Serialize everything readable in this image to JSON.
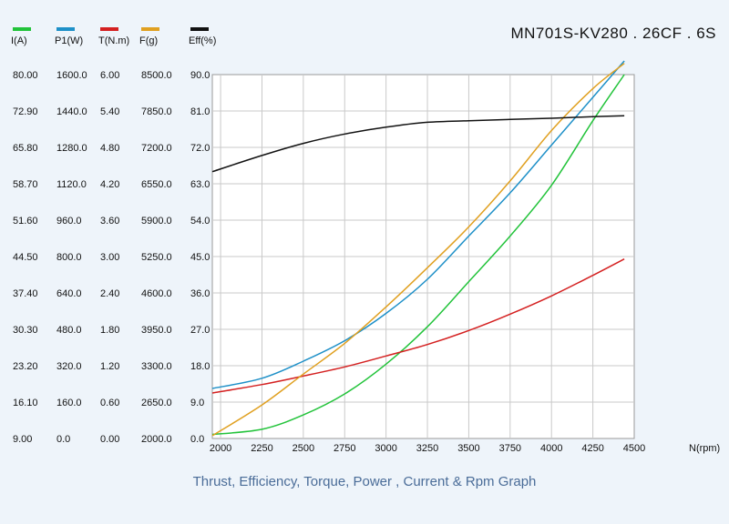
{
  "model_title": "MN701S-KV280 . 26CF . 6S",
  "caption": "Thrust, Efficiency, Torque, Power , Current & Rpm Graph",
  "chart_data": {
    "type": "line",
    "title": "MN701S-KV280 . 26CF . 6S",
    "xlabel": "N(rpm)",
    "xlim": [
      1950,
      4500
    ],
    "x_ticks": [
      "2000",
      "2250",
      "2500",
      "2750",
      "3000",
      "3250",
      "3500",
      "3750",
      "4000",
      "4250",
      "4500"
    ],
    "x_tick_values": [
      2000,
      2250,
      2500,
      2750,
      3000,
      3250,
      3500,
      3750,
      4000,
      4250,
      4500
    ],
    "grid": true,
    "legend_position": "top-left",
    "axes": [
      {
        "name": "I(A)",
        "color": "#22c33a",
        "ylim": [
          9,
          80
        ],
        "ticks": [
          "9.00",
          "16.10",
          "23.20",
          "30.30",
          "37.40",
          "44.50",
          "51.60",
          "58.70",
          "65.80",
          "72.90",
          "80.00"
        ]
      },
      {
        "name": "P1(W)",
        "color": "#1e90c8",
        "ylim": [
          0,
          1600
        ],
        "ticks": [
          "0.0",
          "160.0",
          "320.0",
          "480.0",
          "640.0",
          "800.0",
          "960.0",
          "1120.0",
          "1280.0",
          "1440.0",
          "1600.0"
        ]
      },
      {
        "name": "T(N.m)",
        "color": "#d42020",
        "ylim": [
          0,
          6
        ],
        "ticks": [
          "0.00",
          "0.60",
          "1.20",
          "1.80",
          "2.40",
          "3.00",
          "3.60",
          "4.20",
          "4.80",
          "5.40",
          "6.00"
        ]
      },
      {
        "name": "F(g)",
        "color": "#e0a020",
        "ylim": [
          2000,
          8500
        ],
        "ticks": [
          "2000.0",
          "2650.0",
          "3300.0",
          "3950.0",
          "4600.0",
          "5250.0",
          "5900.0",
          "6550.0",
          "7200.0",
          "7850.0",
          "8500.0"
        ]
      },
      {
        "name": "Eff(%)",
        "color": "#111111",
        "ylim": [
          0,
          90
        ],
        "ticks": [
          "0.0",
          "9.0",
          "18.0",
          "27.0",
          "36.0",
          "45.0",
          "54.0",
          "63.0",
          "72.0",
          "81.0",
          "90.0"
        ]
      }
    ],
    "series": [
      {
        "name": "I(A)",
        "axis": 0,
        "color": "#22c33a",
        "x": [
          1950,
          2250,
          2500,
          2750,
          3000,
          3250,
          3500,
          3750,
          4000,
          4250,
          4440
        ],
        "values": [
          9.8,
          10.8,
          13.6,
          17.7,
          23.5,
          30.8,
          39.6,
          48.5,
          58.4,
          71.0,
          80.0
        ]
      },
      {
        "name": "P1(W)",
        "axis": 1,
        "color": "#1e90c8",
        "x": [
          1950,
          2250,
          2500,
          2750,
          3000,
          3250,
          3500,
          3750,
          4000,
          4250,
          4440
        ],
        "values": [
          220,
          265,
          340,
          430,
          550,
          700,
          890,
          1080,
          1290,
          1500,
          1660
        ]
      },
      {
        "name": "T(N.m)",
        "axis": 2,
        "color": "#d42020",
        "x": [
          1950,
          2250,
          2500,
          2750,
          3000,
          3250,
          3500,
          3750,
          4000,
          4250,
          4440
        ],
        "values": [
          0.75,
          0.89,
          1.03,
          1.18,
          1.36,
          1.55,
          1.78,
          2.05,
          2.35,
          2.69,
          2.96
        ]
      },
      {
        "name": "F(g)",
        "axis": 3,
        "color": "#e0a020",
        "x": [
          1950,
          2250,
          2500,
          2750,
          3000,
          3250,
          3500,
          3750,
          4000,
          4250,
          4440
        ],
        "values": [
          2050,
          2600,
          3150,
          3700,
          4350,
          5050,
          5780,
          6600,
          7500,
          8250,
          8700
        ]
      },
      {
        "name": "Eff(%)",
        "axis": 4,
        "color": "#111111",
        "x": [
          1950,
          2250,
          2500,
          2750,
          3000,
          3250,
          3500,
          3750,
          4000,
          4250,
          4440
        ],
        "values": [
          66.0,
          70.0,
          73.0,
          75.3,
          77.0,
          78.2,
          78.6,
          78.9,
          79.2,
          79.6,
          79.8
        ]
      }
    ]
  }
}
